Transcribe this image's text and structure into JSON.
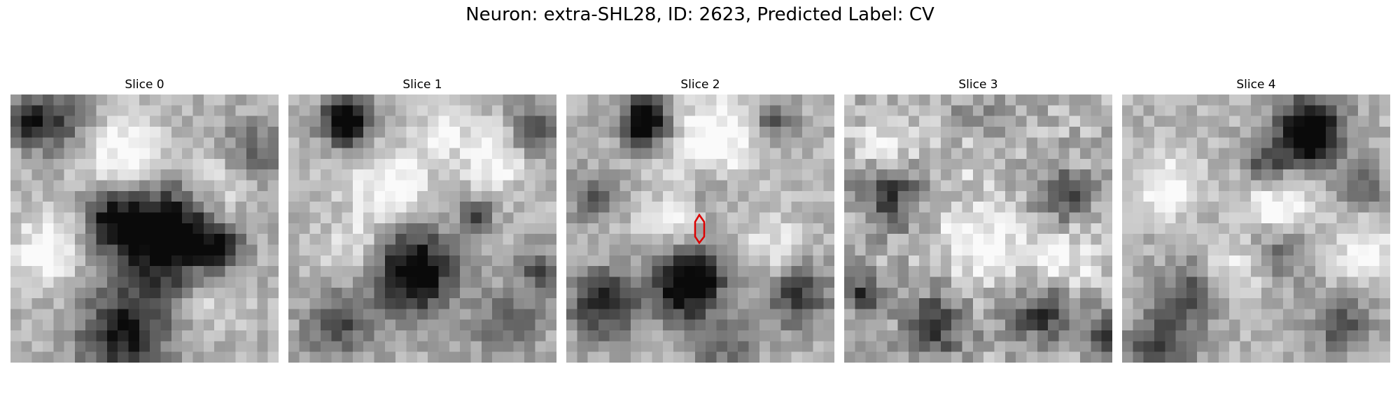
{
  "figure": {
    "title": "Neuron: extra-SHL28, ID: 2623, Predicted Label: CV"
  },
  "slices": [
    {
      "title": "Slice 0"
    },
    {
      "title": "Slice 1"
    },
    {
      "title": "Slice 2"
    },
    {
      "title": "Slice 3"
    },
    {
      "title": "Slice 4"
    }
  ],
  "style": {
    "marker_color": "#dd0000",
    "colormap": "grayscale"
  }
}
